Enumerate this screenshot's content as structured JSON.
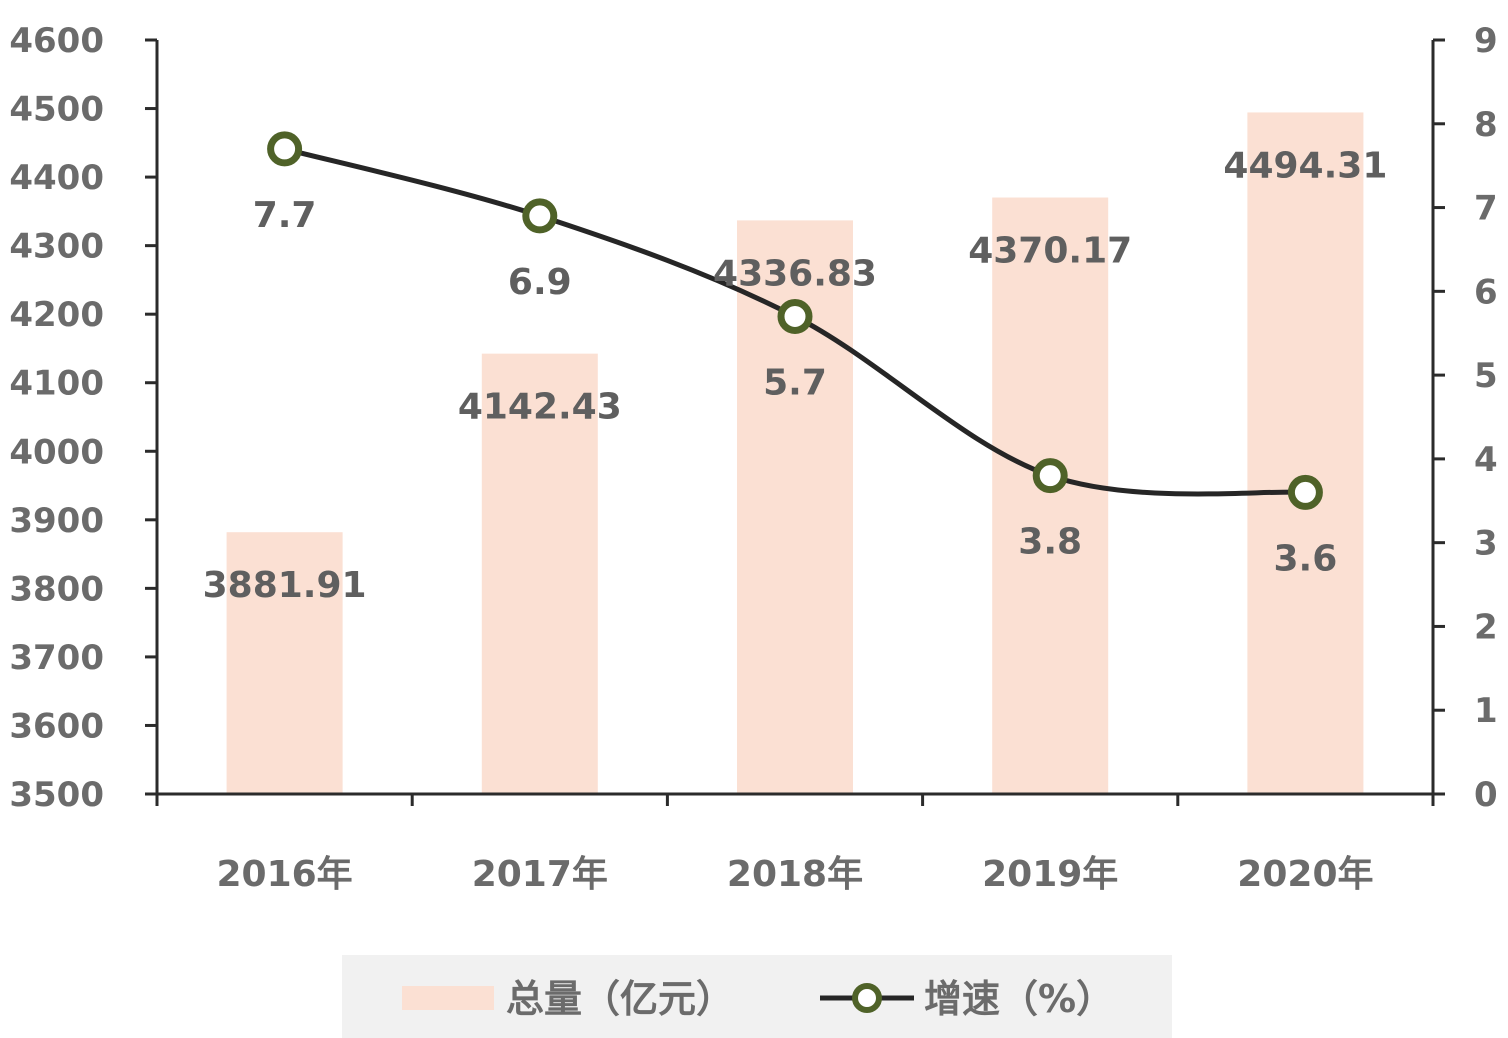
{
  "chart_data": {
    "type": "bar",
    "categories": [
      "2016年",
      "2017年",
      "2018年",
      "2019年",
      "2020年"
    ],
    "series": [
      {
        "name": "总量（亿元）",
        "type": "bar",
        "axis": "left",
        "values": [
          3881.91,
          4142.43,
          4336.83,
          4370.17,
          4494.31
        ],
        "labels": [
          "3881.91",
          "4142.43",
          "4336.83",
          "4370.17",
          "4494.31"
        ],
        "color": "#fbe0d3"
      },
      {
        "name": "增速（%）",
        "type": "line",
        "axis": "right",
        "values": [
          7.7,
          6.9,
          5.7,
          3.8,
          3.6
        ],
        "labels": [
          "7.7",
          "6.9",
          "5.7",
          "3.8",
          "3.6"
        ],
        "color": "#262626",
        "marker_edge_color": "#4f6228"
      }
    ],
    "y_left": {
      "min": 3500,
      "max": 4600,
      "ticks": [
        "3500",
        "3600",
        "3700",
        "3800",
        "3900",
        "4000",
        "4100",
        "4200",
        "4300",
        "4400",
        "4500",
        "4600"
      ]
    },
    "y_right": {
      "min": 0,
      "max": 9,
      "ticks": [
        "0",
        "1",
        "2",
        "3",
        "4",
        "5",
        "6",
        "7",
        "8",
        "9"
      ]
    },
    "grid": false,
    "legend_position": "bottom"
  }
}
